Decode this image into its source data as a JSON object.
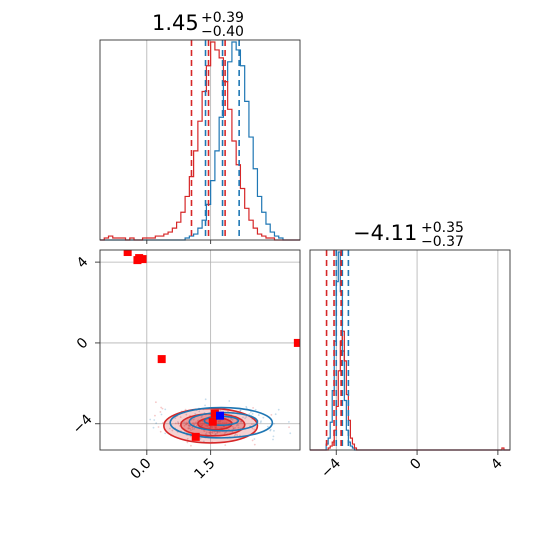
{
  "chart_data": {
    "type": "corner",
    "colors": {
      "series_a": "#1f77b4",
      "series_b": "#d62728",
      "truth_marker": "#0000ff",
      "sample_marker": "#ff0000"
    },
    "grid": true,
    "params": [
      {
        "index": 0,
        "title_main": "1.45",
        "title_plus": "+0.39",
        "title_minus": "−0.40",
        "range": [
          -1.1,
          3.6
        ],
        "ticks": [
          0.0,
          1.5
        ],
        "tick_labels": [
          "0.0",
          "1.5"
        ],
        "quantiles_blue": [
          1.38,
          1.78,
          2.17
        ],
        "quantiles_red": [
          1.05,
          1.45,
          1.84
        ]
      },
      {
        "index": 1,
        "title_main": "−4.11",
        "title_plus": "+0.35",
        "title_minus": "−0.37",
        "range": [
          -5.3,
          4.6
        ],
        "ticks": [
          -4,
          0,
          4
        ],
        "tick_labels": [
          "−4",
          "0",
          "4"
        ],
        "quantiles_blue": [
          -4.0,
          -3.7,
          -3.4
        ],
        "quantiles_red": [
          -4.48,
          -4.11,
          -3.76
        ]
      }
    ],
    "hist_param0": {
      "x_start": -1.1,
      "bin_width": 0.1,
      "blue": [
        0,
        0,
        0,
        0,
        0,
        0,
        0,
        0,
        0,
        0,
        0,
        0,
        0,
        0,
        0,
        0,
        0,
        0,
        0,
        0,
        1,
        2,
        3,
        6,
        10,
        18,
        30,
        45,
        62,
        80,
        90,
        100,
        96,
        88,
        70,
        52,
        36,
        22,
        14,
        8,
        4,
        2,
        1,
        0,
        0,
        0,
        0
      ],
      "red": [
        0,
        1,
        2,
        1,
        1,
        1,
        0,
        1,
        0,
        0,
        1,
        1,
        1,
        2,
        2,
        3,
        4,
        6,
        9,
        14,
        22,
        32,
        45,
        60,
        75,
        88,
        100,
        96,
        92,
        80,
        66,
        50,
        38,
        26,
        16,
        10,
        6,
        3,
        2,
        1,
        1,
        0,
        0,
        0,
        0,
        0,
        0
      ]
    },
    "hist_param1": {
      "x_start": -5.3,
      "bin_width": 0.1,
      "blue": [
        0,
        0,
        0,
        0,
        0,
        0,
        0,
        0,
        3,
        6,
        14,
        30,
        55,
        85,
        100,
        80,
        50,
        25,
        10,
        4,
        2,
        1,
        0,
        0,
        0,
        0,
        0,
        0,
        0,
        0,
        0,
        0,
        0,
        0,
        0,
        0,
        0,
        0,
        0,
        0,
        0,
        0,
        0,
        0,
        0,
        0,
        0,
        0,
        0,
        0,
        0,
        0,
        0,
        0,
        0,
        0,
        0,
        0,
        0,
        0,
        0,
        0,
        0,
        0,
        0,
        0,
        0,
        0,
        0,
        0,
        0,
        0,
        0,
        0,
        0,
        0,
        0,
        0,
        0,
        0,
        0,
        0,
        0,
        0,
        0,
        0,
        0,
        0,
        0,
        0,
        0,
        0,
        0,
        0,
        0,
        0,
        0,
        0,
        0
      ],
      "red": [
        0,
        0,
        0,
        0,
        0,
        0,
        0,
        0,
        0,
        1,
        2,
        4,
        10,
        22,
        40,
        55,
        60,
        45,
        28,
        15,
        6,
        3,
        1,
        0,
        0,
        0,
        0,
        0,
        0,
        0,
        0,
        0,
        0,
        0,
        0,
        0,
        0,
        0,
        0,
        0,
        0,
        0,
        0,
        0,
        0,
        0,
        0,
        0,
        0,
        0,
        0,
        0,
        0,
        0,
        0,
        0,
        0,
        0,
        0,
        0,
        0,
        0,
        0,
        0,
        0,
        0,
        0,
        0,
        0,
        0,
        0,
        0,
        0,
        0,
        0,
        0,
        0,
        0,
        0,
        0,
        0,
        0,
        0,
        0,
        0,
        0,
        0,
        0,
        0,
        0,
        0,
        0,
        0,
        0,
        0,
        1,
        0,
        0,
        0
      ]
    },
    "contours_red": [
      {
        "cx": 1.5,
        "cy": -4.1,
        "rx": 1.1,
        "ry": 0.85,
        "opacity": 0.35
      },
      {
        "cx": 1.55,
        "cy": -4.05,
        "rx": 0.75,
        "ry": 0.55,
        "opacity": 0.55
      },
      {
        "cx": 1.6,
        "cy": -4.0,
        "rx": 0.4,
        "ry": 0.3,
        "opacity": 0.75
      }
    ],
    "contours_blue": [
      {
        "cx": 1.75,
        "cy": -3.95,
        "rx": 1.2,
        "ry": 0.75
      },
      {
        "cx": 1.8,
        "cy": -3.9,
        "rx": 0.8,
        "ry": 0.45
      },
      {
        "cx": 1.75,
        "cy": -3.85,
        "rx": 0.4,
        "ry": 0.22
      }
    ],
    "sample_points": [
      {
        "x": -0.45,
        "y": 4.5
      },
      {
        "x": -0.18,
        "y": 4.2
      },
      {
        "x": -0.1,
        "y": 4.15
      },
      {
        "x": -0.22,
        "y": 4.1
      },
      {
        "x": 0.35,
        "y": -0.8
      },
      {
        "x": 3.55,
        "y": 0.0
      },
      {
        "x": 1.15,
        "y": -4.65
      },
      {
        "x": 1.6,
        "y": -3.5
      },
      {
        "x": 1.55,
        "y": -3.9
      }
    ],
    "truth_point": {
      "x": 1.72,
      "y": -3.6
    }
  }
}
